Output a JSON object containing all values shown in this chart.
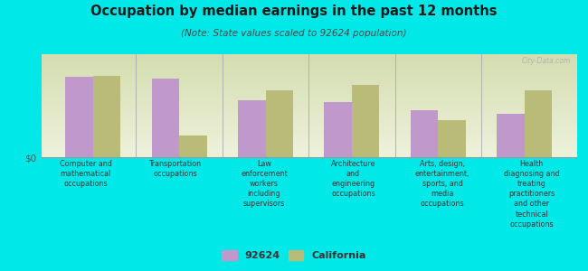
{
  "title": "Occupation by median earnings in the past 12 months",
  "subtitle": "(Note: State values scaled to 92624 population)",
  "background_color": "#00e8e8",
  "plot_bg_top": "#d4ddb0",
  "plot_bg_bottom": "#eef2dc",
  "bar_color_92624": "#c098cc",
  "bar_color_california": "#b8bc78",
  "categories": [
    "Computer and\nmathematical\noccupations",
    "Transportation\noccupations",
    "Law\nenforcement\nworkers\nincluding\nsupervisors",
    "Architecture\nand\nengineering\noccupations",
    "Arts, design,\nentertainment,\nsports, and\nmedia\noccupations",
    "Health\ndiagnosing and\ntreating\npractitioners\nand other\ntechnical\noccupations"
  ],
  "values_92624": [
    0.82,
    0.8,
    0.58,
    0.56,
    0.48,
    0.44
  ],
  "values_california": [
    0.83,
    0.22,
    0.68,
    0.74,
    0.38,
    0.68
  ],
  "ylabel": "$0",
  "legend_92624": "92624",
  "legend_california": "California",
  "watermark": "City-Data.com",
  "title_color": "#1a1a1a",
  "subtitle_color": "#444444",
  "label_color": "#333333"
}
